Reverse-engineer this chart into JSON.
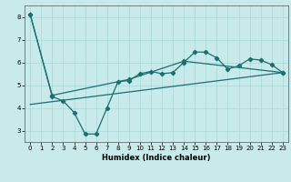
{
  "xlabel": "Humidex (Indice chaleur)",
  "xlim": [
    -0.5,
    23.5
  ],
  "ylim": [
    2.5,
    8.5
  ],
  "yticks": [
    3,
    4,
    5,
    6,
    7,
    8
  ],
  "xticks": [
    0,
    1,
    2,
    3,
    4,
    5,
    6,
    7,
    8,
    9,
    10,
    11,
    12,
    13,
    14,
    15,
    16,
    17,
    18,
    19,
    20,
    21,
    22,
    23
  ],
  "bg_color": "#c8eaea",
  "line_color": "#1a7070",
  "line1_x": [
    0,
    2,
    3,
    4,
    5,
    6,
    7,
    8,
    9,
    10,
    11,
    12,
    13,
    14,
    15,
    16,
    17,
    18,
    19,
    20,
    21,
    22,
    23
  ],
  "line1_y": [
    8.1,
    4.5,
    4.3,
    3.8,
    2.85,
    2.85,
    4.0,
    5.15,
    5.2,
    5.5,
    5.6,
    5.5,
    5.55,
    6.0,
    6.45,
    6.45,
    6.2,
    5.7,
    5.85,
    6.15,
    6.1,
    5.9,
    5.55
  ],
  "line2_x": [
    0,
    2,
    9,
    14,
    23
  ],
  "line2_y": [
    8.1,
    4.55,
    5.25,
    6.05,
    5.55
  ],
  "line3_x": [
    0,
    23
  ],
  "line3_y": [
    4.15,
    5.55
  ],
  "grid_color": "#a8d8d8",
  "marker": "D",
  "markersize": 2.2,
  "linewidth": 0.9,
  "tick_fontsize": 5.0,
  "xlabel_fontsize": 6.0
}
